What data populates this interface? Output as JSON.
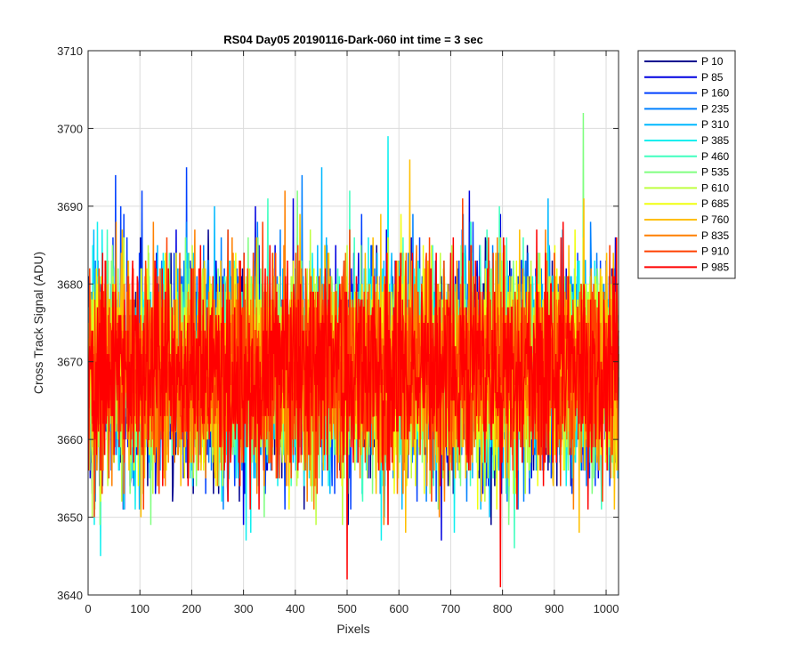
{
  "chart_data": {
    "type": "line",
    "title": "RS04 Day05 20190116-Dark-060 int time = 3 sec",
    "xlabel": "Pixels",
    "ylabel": "Cross Track Signal (ADU)",
    "xlim": [
      0,
      1024
    ],
    "ylim": [
      3640,
      3710
    ],
    "xticks": [
      0,
      100,
      200,
      300,
      400,
      500,
      600,
      700,
      800,
      900,
      1000
    ],
    "yticks": [
      3640,
      3650,
      3660,
      3670,
      3680,
      3690,
      3700,
      3710
    ],
    "grid": true,
    "legend_location": "outside-top-right",
    "n_points": 1024,
    "noise_model": {
      "mean": 3669,
      "std": 6.5,
      "min": 3641,
      "max": 3702
    },
    "series": [
      {
        "name": "P 10",
        "color": "#00008f",
        "mean": 3669
      },
      {
        "name": "P 85",
        "color": "#0000e0",
        "mean": 3669
      },
      {
        "name": "P 160",
        "color": "#0040ff",
        "mean": 3669
      },
      {
        "name": "P 235",
        "color": "#0080ff",
        "mean": 3669
      },
      {
        "name": "P 310",
        "color": "#00b8ff",
        "mean": 3669
      },
      {
        "name": "P 385",
        "color": "#10efef",
        "mean": 3669
      },
      {
        "name": "P 460",
        "color": "#40ffbf",
        "mean": 3669
      },
      {
        "name": "P 535",
        "color": "#80ff80",
        "mean": 3669
      },
      {
        "name": "P 610",
        "color": "#bfff40",
        "mean": 3669
      },
      {
        "name": "P 685",
        "color": "#f0ff10",
        "mean": 3669
      },
      {
        "name": "P 760",
        "color": "#ffbf00",
        "mean": 3669
      },
      {
        "name": "P 835",
        "color": "#ff8000",
        "mean": 3669
      },
      {
        "name": "P 910",
        "color": "#ff4000",
        "mean": 3669
      },
      {
        "name": "P 985",
        "color": "#ff0000",
        "mean": 3669
      }
    ],
    "annotated_extremes": [
      {
        "series": "P 535",
        "x": 955,
        "y": 3702
      },
      {
        "series": "P 385",
        "x": 578,
        "y": 3699
      },
      {
        "series": "P 760",
        "x": 620,
        "y": 3696
      },
      {
        "series": "P 310",
        "x": 450,
        "y": 3695
      },
      {
        "series": "P 160",
        "x": 52,
        "y": 3694
      },
      {
        "series": "P 985",
        "x": 795,
        "y": 3641
      },
      {
        "series": "P 985",
        "x": 499,
        "y": 3642
      },
      {
        "series": "P 460",
        "x": 822,
        "y": 3646
      }
    ]
  }
}
